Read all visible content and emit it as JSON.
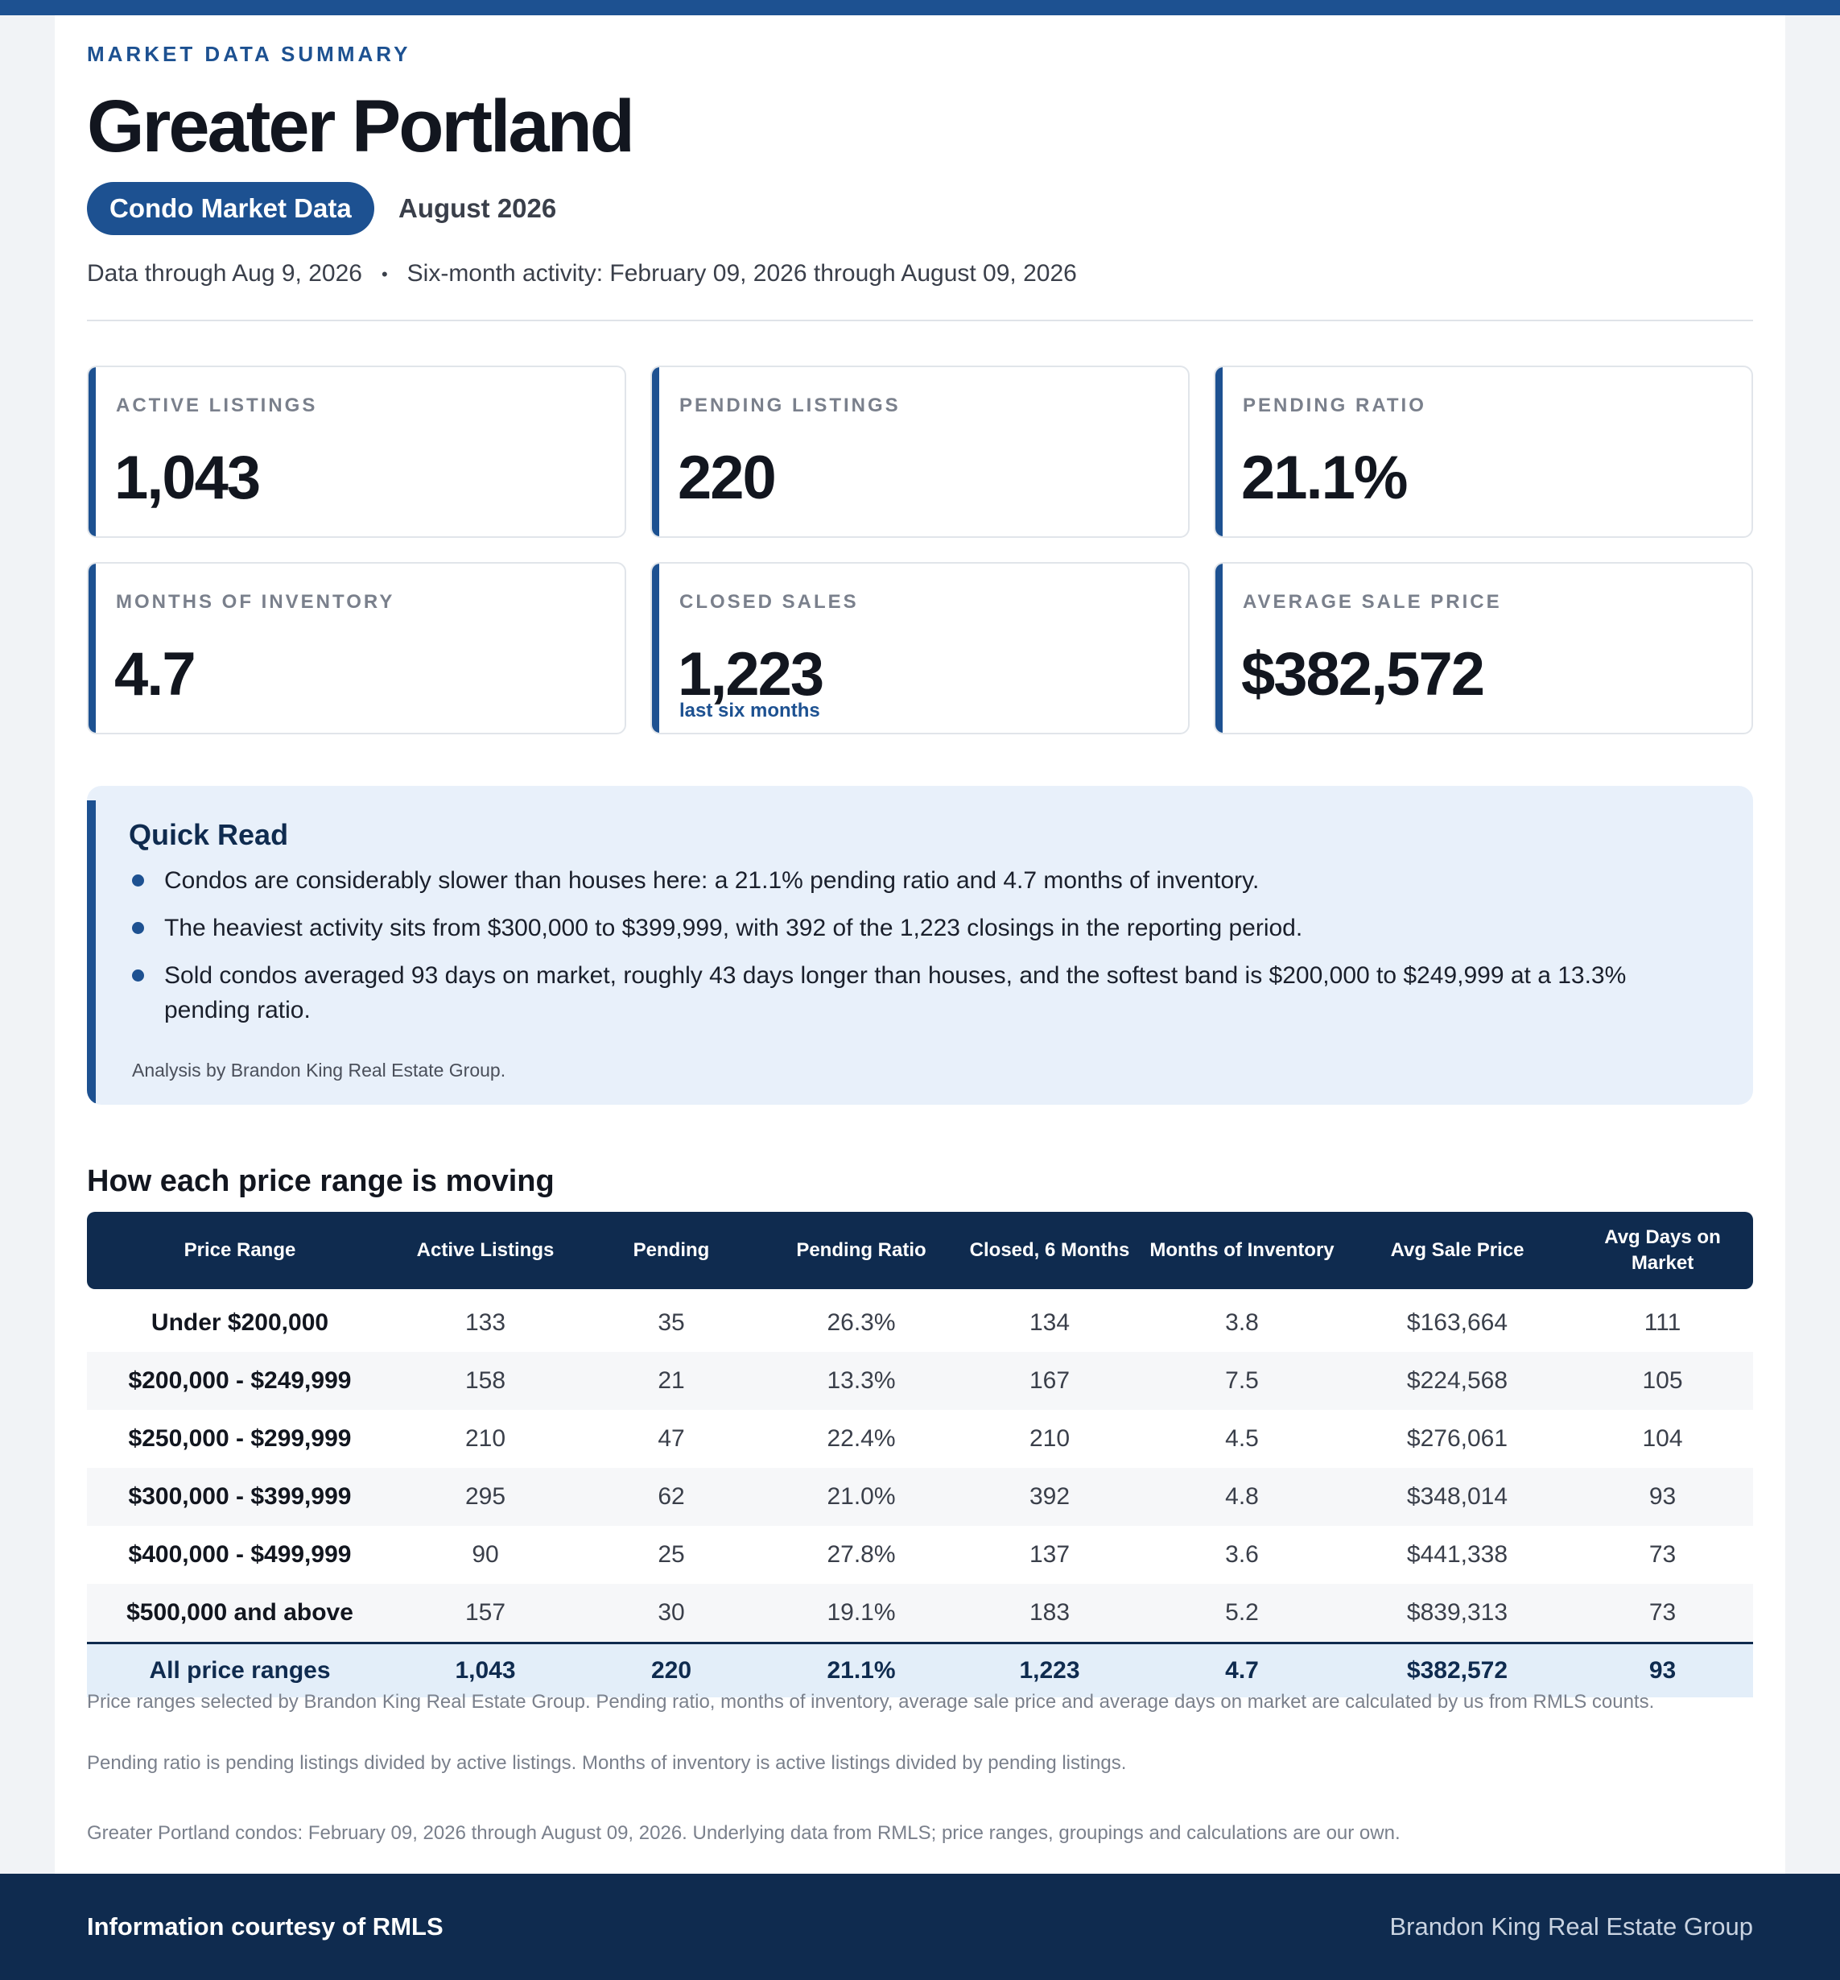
{
  "header": {
    "kicker": "MARKET DATA SUMMARY",
    "title": "Greater Portland",
    "pill": "Condo Market Data",
    "month": "August 2026",
    "data_through": "Data through Aug 9, 2026",
    "separator": "•",
    "activity": "Six-month activity: February 09, 2026 through August 09, 2026"
  },
  "cards": [
    {
      "label": "ACTIVE LISTINGS",
      "value": "1,043",
      "sub": ""
    },
    {
      "label": "PENDING LISTINGS",
      "value": "220",
      "sub": ""
    },
    {
      "label": "PENDING RATIO",
      "value": "21.1%",
      "sub": ""
    },
    {
      "label": "MONTHS OF INVENTORY",
      "value": "4.7",
      "sub": ""
    },
    {
      "label": "CLOSED SALES",
      "value": "1,223",
      "sub": "last six months"
    },
    {
      "label": "AVERAGE SALE PRICE",
      "value": "$382,572",
      "sub": ""
    }
  ],
  "quick_read": {
    "title": "Quick Read",
    "bullets": [
      "Condos are considerably slower than houses here: a 21.1% pending ratio and 4.7 months of inventory.",
      "The heaviest activity sits from $300,000 to $399,999, with 392 of the 1,223 closings in the reporting period.",
      "Sold condos averaged 93 days on market, roughly 43 days longer than houses, and the softest band is $200,000 to $249,999 at a 13.3% pending ratio."
    ],
    "credit": "Analysis by Brandon King Real Estate Group."
  },
  "table": {
    "title": "How each price range is moving",
    "headers": [
      "Price Range",
      "Active Listings",
      "Pending",
      "Pending Ratio",
      "Closed, 6 Months",
      "Months of Inventory",
      "Avg Sale Price",
      "Avg Days on Market"
    ],
    "rows": [
      [
        "Under $200,000",
        "133",
        "35",
        "26.3%",
        "134",
        "3.8",
        "$163,664",
        "111"
      ],
      [
        "$200,000 - $249,999",
        "158",
        "21",
        "13.3%",
        "167",
        "7.5",
        "$224,568",
        "105"
      ],
      [
        "$250,000 - $299,999",
        "210",
        "47",
        "22.4%",
        "210",
        "4.5",
        "$276,061",
        "104"
      ],
      [
        "$300,000 - $399,999",
        "295",
        "62",
        "21.0%",
        "392",
        "4.8",
        "$348,014",
        "93"
      ],
      [
        "$400,000 - $499,999",
        "90",
        "25",
        "27.8%",
        "137",
        "3.6",
        "$441,338",
        "73"
      ],
      [
        "$500,000 and above",
        "157",
        "30",
        "19.1%",
        "183",
        "5.2",
        "$839,313",
        "73"
      ]
    ],
    "total": [
      "All price ranges",
      "1,043",
      "220",
      "21.1%",
      "1,223",
      "4.7",
      "$382,572",
      "93"
    ]
  },
  "notes": {
    "n1": "Price ranges selected by Brandon King Real Estate Group. Pending ratio, months of inventory, average sale price and average days on market are calculated by us from RMLS counts.",
    "n2": "Pending ratio is pending listings divided by active listings. Months of inventory is active listings divided by pending listings.",
    "n3": "Greater Portland condos: February 09, 2026 through August 09, 2026. Underlying data from RMLS; price ranges, groupings and calculations are our own."
  },
  "footer": {
    "left": "Information courtesy of RMLS",
    "right": "Brandon King Real Estate Group"
  },
  "colors": {
    "accent": "#1d5191",
    "navy": "#0f2b4f",
    "quick_bg": "#e8f0fa"
  }
}
